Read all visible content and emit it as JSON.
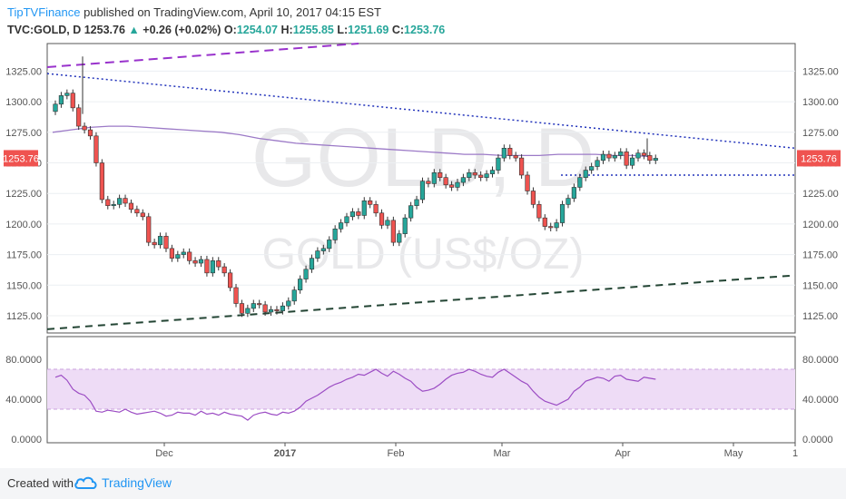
{
  "header": {
    "publisher": "TipTVFinance",
    "published_text": "published on TradingView.com, April 10, 2017 04:15 EST",
    "symbol": "TVC:GOLD, D",
    "last": "1253.76",
    "change": "+0.26 (+0.02%)",
    "open_label": "O:",
    "open": "1254.07",
    "high_label": "H:",
    "high": "1255.85",
    "low_label": "L:",
    "low": "1251.69",
    "close_label": "C:",
    "close": "1253.76"
  },
  "watermark": {
    "line1": "GOLD, D",
    "line2": "GOLD (US$/OZ)"
  },
  "footer": {
    "created_with": "Created with",
    "brand": "TradingView"
  },
  "colors": {
    "up": "#26a69a",
    "down": "#ef5350",
    "ma": "#9c7ac7",
    "rsi": "#9c4dc4",
    "rsi_band": "#eedcf6",
    "trend_top": "#9932cc",
    "trend_res": "#2233bb",
    "trend_sup": "#224433"
  },
  "chart_data": [
    {
      "type": "candlestick",
      "symbol": "TVC:GOLD",
      "timeframe": "D",
      "last_price_label": "1253.76",
      "ylim": [
        1110,
        1340
      ],
      "y_ticks": [
        "1125.00",
        "1150.00",
        "1175.00",
        "1200.00",
        "1225.00",
        "1250.00",
        "1275.00",
        "1300.00",
        "1325.00"
      ],
      "x_ticks": [
        "Dec",
        "2017",
        "Feb",
        "Mar",
        "Apr",
        "May",
        "1"
      ],
      "ohlc_close": [
        1298,
        1305,
        1307,
        1295,
        1280,
        1277,
        1272,
        1250,
        1220,
        1215,
        1216,
        1221,
        1217,
        1212,
        1209,
        1206,
        1185,
        1183,
        1190,
        1180,
        1172,
        1175,
        1177,
        1170,
        1168,
        1171,
        1160,
        1170,
        1165,
        1160,
        1148,
        1135,
        1127,
        1131,
        1135,
        1134,
        1128,
        1130,
        1129,
        1133,
        1137,
        1146,
        1155,
        1163,
        1172,
        1178,
        1180,
        1187,
        1196,
        1201,
        1206,
        1210,
        1207,
        1219,
        1216,
        1209,
        1199,
        1203,
        1185,
        1192,
        1205,
        1215,
        1220,
        1235,
        1233,
        1242,
        1238,
        1232,
        1230,
        1234,
        1238,
        1242,
        1240,
        1238,
        1241,
        1244,
        1254,
        1262,
        1256,
        1254,
        1240,
        1227,
        1216,
        1205,
        1198,
        1197,
        1201,
        1216,
        1221,
        1230,
        1238,
        1244,
        1247,
        1252,
        1257,
        1254,
        1256,
        1259,
        1248,
        1254,
        1258,
        1256,
        1252,
        1253.76
      ],
      "moving_average": [
        1275,
        1277,
        1279,
        1280,
        1280,
        1279,
        1278,
        1277,
        1276,
        1275,
        1273,
        1270,
        1268,
        1266,
        1265,
        1264,
        1263,
        1262,
        1261,
        1260,
        1259,
        1258,
        1257,
        1257,
        1256,
        1256,
        1256,
        1257,
        1257,
        1257,
        1256,
        1256,
        1255
      ],
      "trendlines": [
        {
          "name": "upper-dashed",
          "style": "dashed",
          "points": [
            [
              "start",
              1332
            ],
            [
              "Jan",
              1346
            ]
          ]
        },
        {
          "name": "resistance-dotted",
          "style": "dotted",
          "points": [
            [
              "start",
              1323
            ],
            [
              "May 1",
              1262
            ]
          ]
        },
        {
          "name": "horizontal-support-dotted",
          "style": "dotted",
          "level": 1240
        },
        {
          "name": "support-dashed",
          "style": "dashed",
          "points": [
            [
              "start",
              1114
            ],
            [
              "May 1",
              1158
            ]
          ]
        }
      ],
      "rsi": {
        "ylim": [
          0,
          80
        ],
        "y_ticks": [
          "0.0000",
          "40.0000",
          "80.0000"
        ],
        "band": [
          30,
          70
        ],
        "values": [
          62,
          64,
          59,
          50,
          46,
          44,
          38,
          28,
          27,
          29,
          28,
          27,
          30,
          27,
          25,
          26,
          27,
          28,
          26,
          23,
          24,
          27,
          26,
          26,
          24,
          28,
          25,
          26,
          24,
          27,
          25,
          24,
          23,
          19,
          24,
          26,
          27,
          25,
          24,
          27,
          26,
          28,
          32,
          38,
          41,
          44,
          48,
          52,
          55,
          57,
          60,
          62,
          65,
          64,
          67,
          70,
          66,
          63,
          68,
          65,
          61,
          58,
          52,
          48,
          49,
          51,
          55,
          60,
          64,
          66,
          67,
          70,
          68,
          65,
          63,
          62,
          67,
          70,
          66,
          62,
          58,
          55,
          48,
          42,
          38,
          36,
          34,
          37,
          40,
          48,
          52,
          58,
          60,
          62,
          61,
          58,
          63,
          64,
          60,
          59,
          58,
          62,
          61,
          60
        ]
      }
    }
  ]
}
